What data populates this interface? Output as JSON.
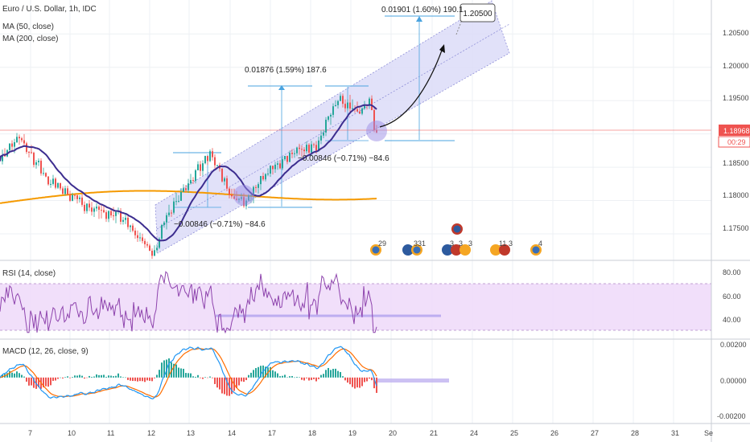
{
  "title": "Euro / U.S. Dollar, 1h, IDC",
  "indicators": {
    "ma50": "MA (50, close)",
    "ma200": "MA (200, close)",
    "rsi": "RSI (14, close)",
    "macd": "MACD (12, 26, close, 9)"
  },
  "price_axis": {
    "ticks": [
      "1.20500",
      "1.20000",
      "1.19500",
      "1.19000",
      "1.18500",
      "1.18000",
      "1.17500"
    ],
    "current_price": "1.18968",
    "countdown": "00:29"
  },
  "rsi_axis": {
    "ticks": [
      "80.00",
      "60.00",
      "40.00"
    ]
  },
  "macd_axis": {
    "ticks": [
      "0.00200",
      "0.00000",
      "-0.00200"
    ]
  },
  "time_axis": {
    "labels": [
      "7",
      "10",
      "11",
      "12",
      "13",
      "14",
      "17",
      "18",
      "19",
      "20",
      "21",
      "24",
      "25",
      "26",
      "27",
      "28",
      "31",
      "Se"
    ]
  },
  "annotations": {
    "measure_upper": "0.01876 (1.59%) 187.6",
    "measure_target": "0.01901 (1.60%) 190.1",
    "target_callout": "1.20500",
    "measure_low": "−0.00846 (−0.71%) −84.6",
    "measure_mid": "−0.00846 (−0.71%) −84.6"
  },
  "events": [
    {
      "label": "29"
    },
    {
      "label": "331"
    },
    {
      "label": "3"
    },
    {
      "label": "3"
    },
    {
      "label": "3"
    },
    {
      "label": "11"
    },
    {
      "label": "3"
    },
    {
      "label": "4"
    }
  ],
  "colors": {
    "up": "#26a69a",
    "down": "#ef5350",
    "ma50": "#3c2d8f",
    "ma200": "#f59a00",
    "rsi_line": "#8e44ad",
    "macd_line": "#2196f3",
    "signal_line": "#ff6d00",
    "channel_fill": "#dcdcf8",
    "price_tag": "#ef5350"
  },
  "chart_data": {
    "type": "candlestick",
    "main_ylim": [
      1.1715,
      1.2095
    ],
    "rsi_ylim": [
      25,
      85
    ],
    "macd_ylim": [
      -0.0026,
      0.0021
    ],
    "key_points": [
      {
        "t": 0,
        "p": 1.1865
      },
      {
        "t": 25,
        "p": 1.1893
      },
      {
        "t": 60,
        "p": 1.183
      },
      {
        "t": 110,
        "p": 1.179
      },
      {
        "t": 150,
        "p": 1.1775
      },
      {
        "t": 190,
        "p": 1.172
      },
      {
        "t": 210,
        "p": 1.1785
      },
      {
        "t": 235,
        "p": 1.183
      },
      {
        "t": 262,
        "p": 1.187
      },
      {
        "t": 285,
        "p": 1.181
      },
      {
        "t": 305,
        "p": 1.1795
      },
      {
        "t": 330,
        "p": 1.184
      },
      {
        "t": 365,
        "p": 1.187
      },
      {
        "t": 395,
        "p": 1.1885
      },
      {
        "t": 420,
        "p": 1.1955
      },
      {
        "t": 445,
        "p": 1.1935
      },
      {
        "t": 460,
        "p": 1.1945
      },
      {
        "t": 468,
        "p": 1.1895
      }
    ]
  }
}
